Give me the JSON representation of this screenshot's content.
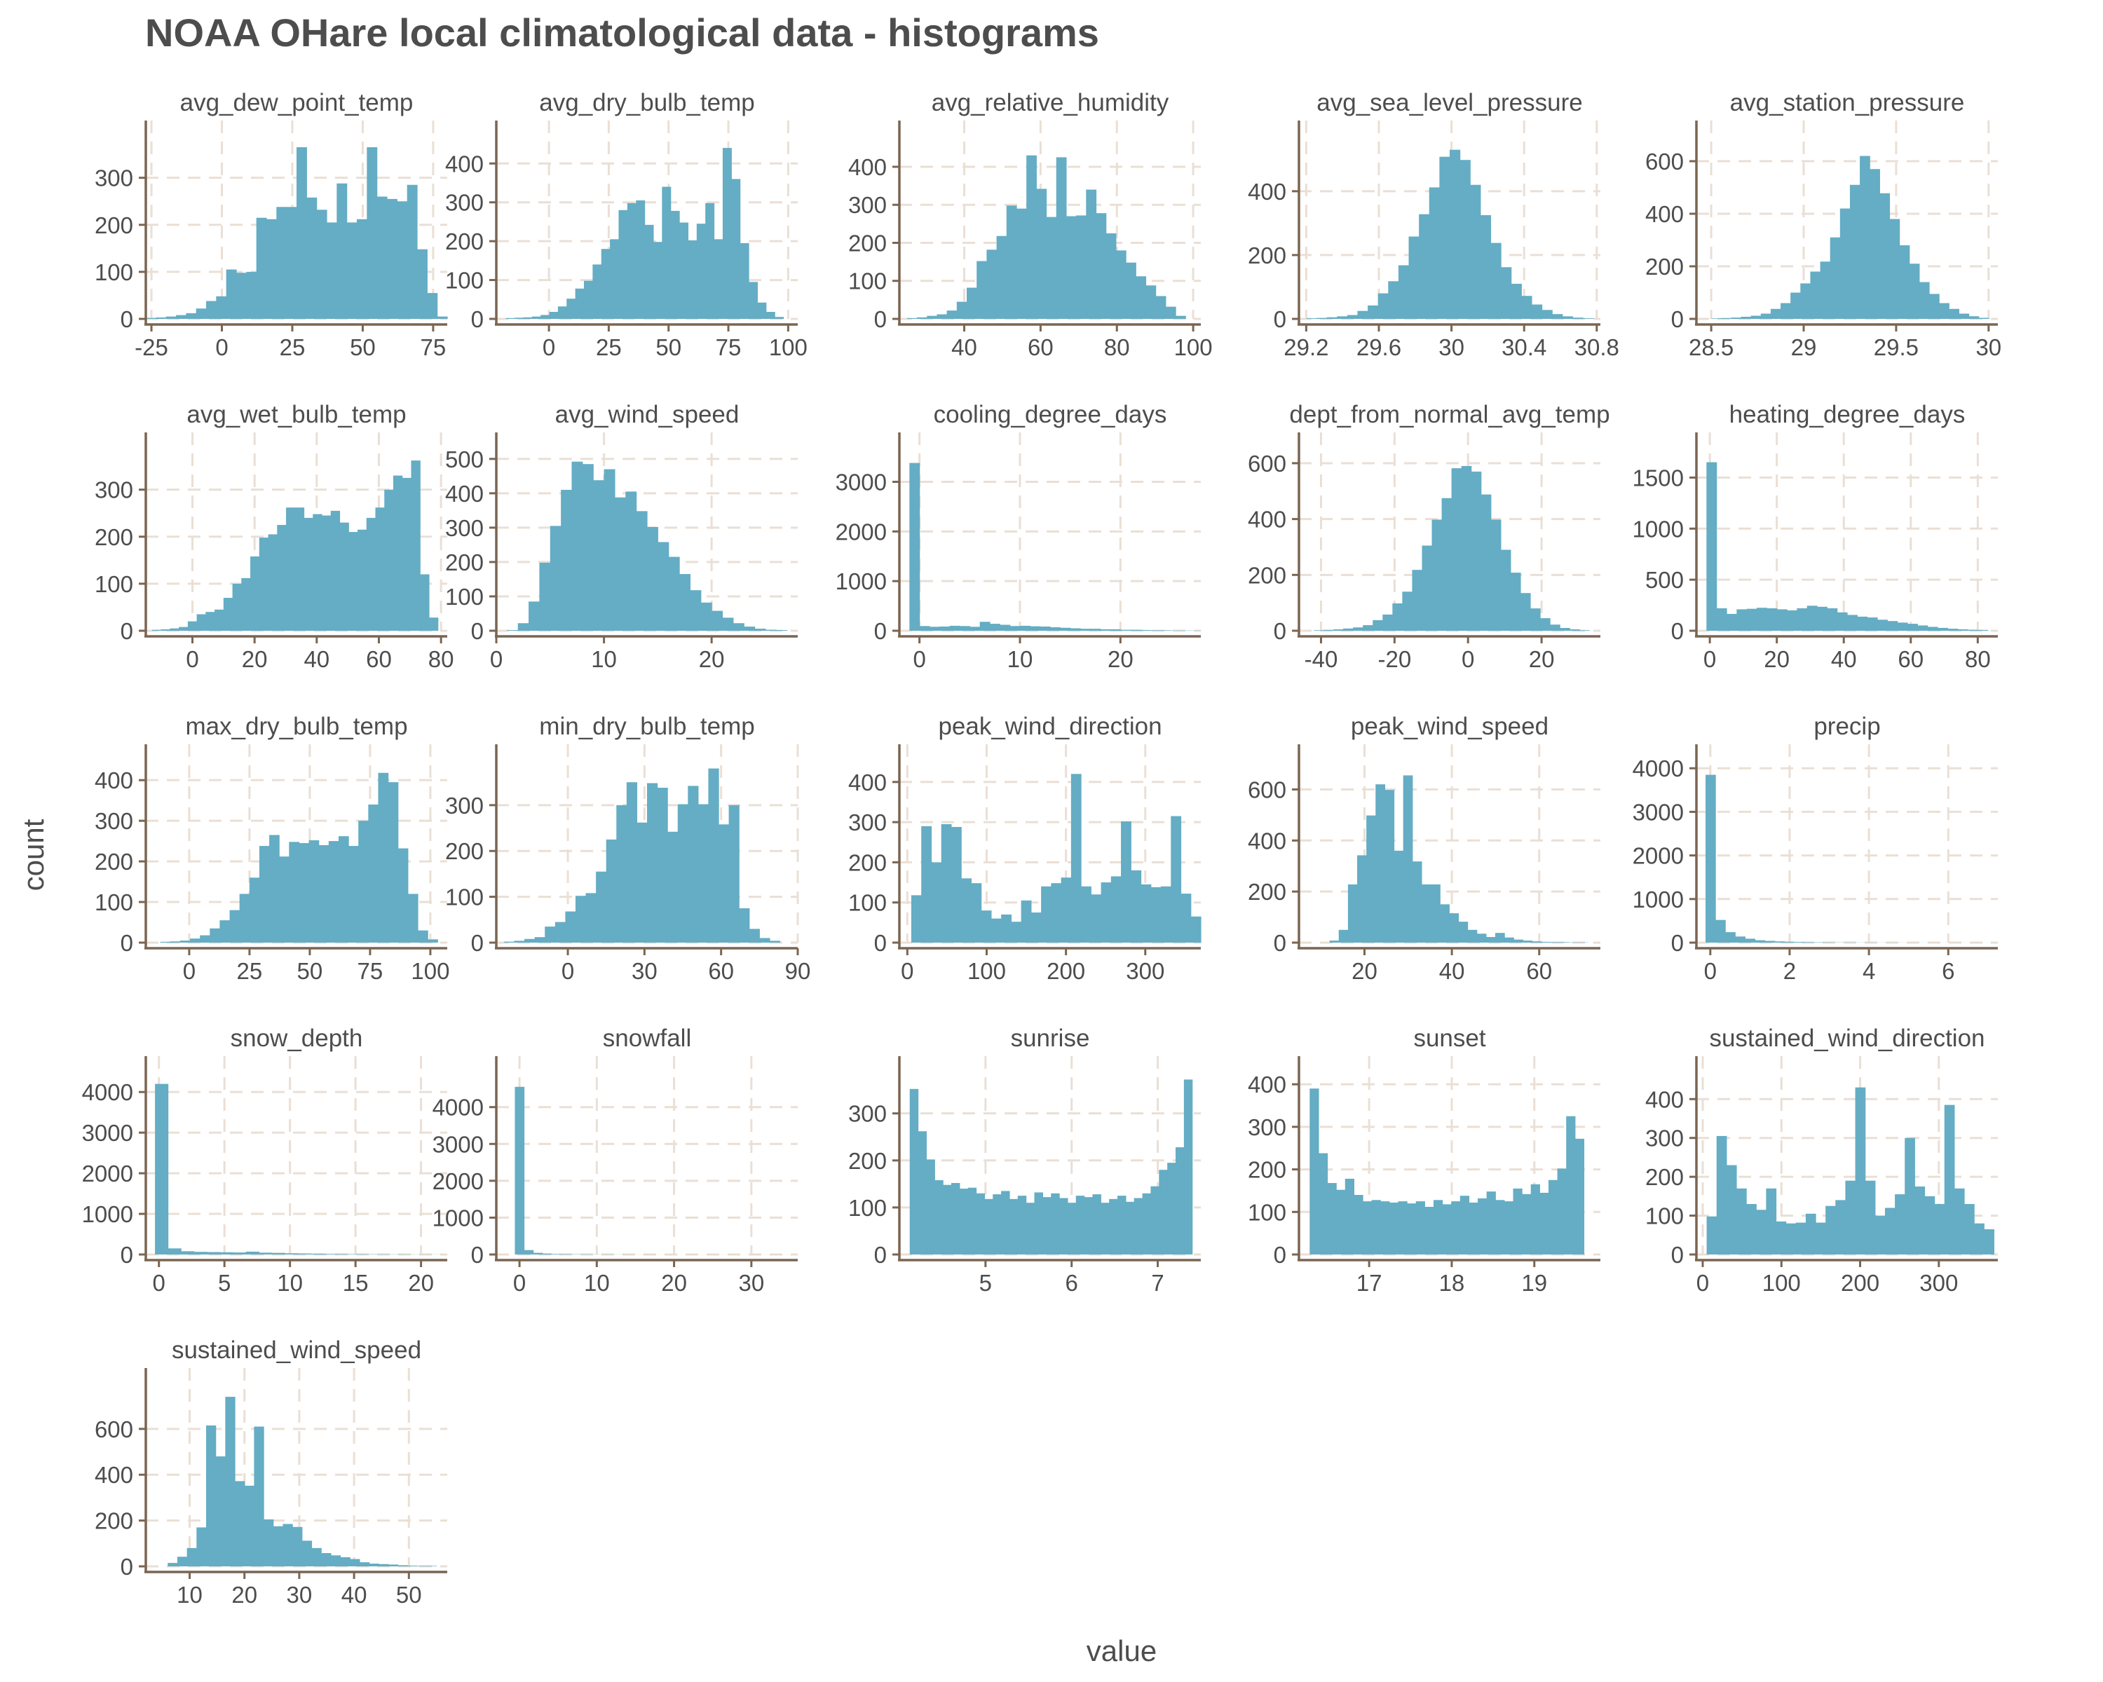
{
  "chart_data": {
    "type": "histogram-facets",
    "title": "NOAA OHare local climatological data - histograms",
    "xlabel": "value",
    "ylabel": "count",
    "colors": {
      "bar": "#64adc4",
      "axis": "#7a6552",
      "grid": "#eadfd5",
      "text": "#4d4d4d"
    },
    "grid": true,
    "facets": [
      {
        "name": "avg_dew_point_temp",
        "xlim": [
          -27,
          80
        ],
        "ylim": [
          0,
          380
        ],
        "xticks": [
          -25,
          0,
          25,
          50,
          75
        ],
        "yticks": [
          0,
          100,
          200,
          300
        ],
        "bins": [
          -27,
          80
        ],
        "counts": [
          2,
          3,
          5,
          8,
          12,
          22,
          38,
          48,
          105,
          98,
          100,
          215,
          212,
          238,
          238,
          365,
          258,
          232,
          205,
          288,
          205,
          212,
          365,
          260,
          255,
          250,
          285,
          148,
          55,
          5
        ]
      },
      {
        "name": "avg_dry_bulb_temp",
        "xlim": [
          -22,
          104
        ],
        "ylim": [
          0,
          460
        ],
        "xticks": [
          0,
          25,
          50,
          75,
          100
        ],
        "yticks": [
          0,
          100,
          200,
          300,
          400
        ],
        "bins": [
          -18,
          98
        ],
        "counts": [
          2,
          3,
          4,
          6,
          10,
          18,
          32,
          52,
          78,
          98,
          140,
          180,
          205,
          280,
          298,
          305,
          242,
          198,
          340,
          278,
          248,
          202,
          245,
          298,
          205,
          440,
          360,
          195,
          95,
          42,
          18,
          5
        ]
      },
      {
        "name": "avg_relative_humidity",
        "xlim": [
          23,
          102
        ],
        "ylim": [
          0,
          470
        ],
        "xticks": [
          40,
          60,
          80,
          100
        ],
        "yticks": [
          0,
          100,
          200,
          300,
          400
        ],
        "bins": [
          25,
          98
        ],
        "counts": [
          2,
          4,
          8,
          12,
          22,
          45,
          82,
          152,
          182,
          218,
          298,
          290,
          430,
          342,
          268,
          425,
          270,
          272,
          340,
          278,
          225,
          180,
          148,
          112,
          88,
          60,
          32,
          8
        ]
      },
      {
        "name": "avg_sea_level_pressure",
        "xlim": [
          29.16,
          30.82
        ],
        "ylim": [
          0,
          560
        ],
        "xticks": [
          29.2,
          29.6,
          30.0,
          30.4,
          30.8
        ],
        "yticks": [
          0,
          200,
          400
        ],
        "bins": [
          29.2,
          30.78
        ],
        "counts": [
          2,
          3,
          5,
          8,
          12,
          25,
          42,
          80,
          118,
          168,
          258,
          328,
          412,
          508,
          530,
          498,
          420,
          325,
          238,
          162,
          110,
          72,
          45,
          28,
          15,
          8,
          4,
          2
        ]
      },
      {
        "name": "avg_station_pressure",
        "xlim": [
          28.42,
          30.05
        ],
        "ylim": [
          0,
          680
        ],
        "xticks": [
          28.5,
          29.0,
          29.5,
          30.0
        ],
        "yticks": [
          0,
          200,
          400,
          600
        ],
        "bins": [
          28.5,
          30.0
        ],
        "counts": [
          2,
          3,
          5,
          8,
          12,
          20,
          38,
          60,
          100,
          135,
          180,
          218,
          310,
          420,
          510,
          620,
          570,
          478,
          380,
          280,
          210,
          140,
          95,
          60,
          38,
          20,
          10,
          4
        ]
      },
      {
        "name": "avg_wet_bulb_temp",
        "xlim": [
          -15,
          82
        ],
        "ylim": [
          0,
          380
        ],
        "xticks": [
          0,
          20,
          40,
          60,
          80
        ],
        "yticks": [
          0,
          100,
          200,
          300
        ],
        "bins": [
          -13,
          79
        ],
        "counts": [
          2,
          3,
          5,
          8,
          20,
          35,
          40,
          45,
          70,
          100,
          112,
          158,
          198,
          205,
          225,
          262,
          262,
          240,
          248,
          245,
          255,
          230,
          210,
          215,
          240,
          262,
          300,
          330,
          325,
          362,
          120,
          28
        ]
      },
      {
        "name": "avg_wind_speed",
        "xlim": [
          0,
          28
        ],
        "ylim": [
          0,
          520
        ],
        "xticks": [
          0,
          10,
          20
        ],
        "yticks": [
          0,
          100,
          200,
          300,
          400,
          500
        ],
        "bins": [
          1,
          27
        ],
        "counts": [
          2,
          22,
          85,
          198,
          305,
          410,
          492,
          485,
          438,
          470,
          388,
          405,
          348,
          302,
          258,
          215,
          165,
          118,
          82,
          58,
          38,
          22,
          12,
          6,
          3,
          2
        ]
      },
      {
        "name": "cooling_degree_days",
        "xlim": [
          -2,
          28
        ],
        "ylim": [
          0,
          3600
        ],
        "xticks": [
          0,
          10,
          20
        ],
        "yticks": [
          0,
          1000,
          2000,
          3000
        ],
        "bins": [
          -1,
          28
        ],
        "counts": [
          3380,
          95,
          80,
          85,
          100,
          95,
          80,
          180,
          140,
          120,
          95,
          100,
          90,
          85,
          70,
          60,
          50,
          40,
          40,
          30,
          30,
          20,
          20,
          15,
          10,
          10,
          5,
          5,
          3
        ]
      },
      {
        "name": "dept_from_normal_avg_temp",
        "xlim": [
          -46,
          36
        ],
        "ylim": [
          0,
          640
        ],
        "xticks": [
          -40,
          -20,
          0,
          20
        ],
        "yticks": [
          0,
          200,
          400,
          600
        ],
        "bins": [
          -42,
          33
        ],
        "counts": [
          2,
          3,
          5,
          8,
          12,
          20,
          38,
          58,
          98,
          140,
          218,
          305,
          398,
          475,
          582,
          590,
          570,
          488,
          398,
          290,
          208,
          135,
          80,
          45,
          22,
          10,
          5,
          2
        ]
      },
      {
        "name": "heating_degree_days",
        "xlim": [
          -4,
          86
        ],
        "ylim": [
          0,
          1750
        ],
        "xticks": [
          0,
          20,
          40,
          60,
          80
        ],
        "yticks": [
          0,
          500,
          1000,
          1500
        ],
        "bins": [
          -1,
          83
        ],
        "counts": [
          1650,
          220,
          165,
          210,
          215,
          225,
          220,
          210,
          200,
          220,
          245,
          235,
          220,
          180,
          155,
          138,
          130,
          108,
          95,
          80,
          68,
          52,
          38,
          28,
          20,
          14,
          10,
          8
        ]
      },
      {
        "name": "max_dry_bulb_temp",
        "xlim": [
          -18,
          107
        ],
        "ylim": [
          0,
          440
        ],
        "xticks": [
          0,
          25,
          50,
          75,
          100
        ],
        "yticks": [
          0,
          100,
          200,
          300,
          400
        ],
        "bins": [
          -12,
          103
        ],
        "counts": [
          2,
          3,
          5,
          10,
          18,
          35,
          55,
          80,
          120,
          160,
          238,
          265,
          212,
          248,
          245,
          252,
          240,
          250,
          262,
          238,
          300,
          340,
          418,
          395,
          232,
          120,
          30,
          8
        ]
      },
      {
        "name": "min_dry_bulb_temp",
        "xlim": [
          -28,
          90
        ],
        "ylim": [
          0,
          390
        ],
        "xticks": [
          0,
          30,
          60,
          90
        ],
        "yticks": [
          0,
          100,
          200,
          300
        ],
        "bins": [
          -25,
          83
        ],
        "counts": [
          2,
          4,
          8,
          12,
          35,
          45,
          68,
          102,
          108,
          155,
          225,
          300,
          350,
          262,
          348,
          338,
          242,
          302,
          342,
          302,
          380,
          258,
          300,
          75,
          30,
          10,
          4
        ]
      },
      {
        "name": "peak_wind_direction",
        "xlim": [
          -10,
          370
        ],
        "ylim": [
          0,
          445
        ],
        "xticks": [
          0,
          100,
          200,
          300
        ],
        "yticks": [
          0,
          100,
          200,
          300,
          400
        ],
        "bins": [
          5,
          370
        ],
        "counts": [
          118,
          290,
          200,
          295,
          288,
          160,
          148,
          80,
          60,
          70,
          52,
          105,
          75,
          140,
          148,
          162,
          420,
          140,
          120,
          150,
          165,
          302,
          180,
          145,
          138,
          140,
          315,
          122,
          65
        ]
      },
      {
        "name": "peak_wind_speed",
        "xlim": [
          5,
          74
        ],
        "ylim": [
          0,
          700
        ],
        "xticks": [
          20,
          40,
          60
        ],
        "yticks": [
          0,
          200,
          400,
          600
        ],
        "bins": [
          12,
          71
        ],
        "counts": [
          8,
          50,
          228,
          342,
          498,
          620,
          598,
          360,
          655,
          318,
          228,
          228,
          150,
          115,
          82,
          50,
          35,
          22,
          38,
          20,
          12,
          8,
          5,
          3,
          2,
          2,
          1,
          1
        ]
      },
      {
        "name": "precip",
        "xlim": [
          -0.35,
          7.25
        ],
        "ylim": [
          0,
          4100
        ],
        "xticks": [
          0,
          2,
          4,
          6
        ],
        "yticks": [
          0,
          1000,
          2000,
          3000,
          4000
        ],
        "bins": [
          -0.12,
          7.1
        ],
        "counts": [
          3850,
          520,
          240,
          140,
          90,
          55,
          40,
          28,
          20,
          15,
          10,
          8,
          6,
          5,
          4,
          3,
          3,
          2,
          2,
          2,
          1,
          1,
          1,
          1,
          1,
          1,
          1,
          1,
          1
        ]
      },
      {
        "name": "snow_depth",
        "xlim": [
          -1,
          22
        ],
        "ylim": [
          0,
          4400
        ],
        "xticks": [
          0,
          5,
          10,
          15,
          20
        ],
        "yticks": [
          0,
          1000,
          2000,
          3000,
          4000
        ],
        "bins": [
          -0.3,
          21.5
        ],
        "counts": [
          4200,
          150,
          80,
          65,
          60,
          55,
          50,
          70,
          45,
          40,
          30,
          25,
          20,
          15,
          12,
          10,
          8,
          6,
          5,
          4,
          3,
          3
        ]
      },
      {
        "name": "snowfall",
        "xlim": [
          -3,
          36
        ],
        "ylim": [
          0,
          4850
        ],
        "xticks": [
          0,
          10,
          20,
          30
        ],
        "yticks": [
          0,
          1000,
          2000,
          3000,
          4000
        ],
        "bins": [
          -0.6,
          35
        ],
        "counts": [
          4550,
          120,
          45,
          25,
          15,
          10,
          8,
          6,
          5,
          4,
          3,
          3,
          2,
          2,
          2,
          1,
          1,
          1,
          1,
          1,
          1,
          1,
          1,
          1,
          1,
          1,
          1,
          1,
          1,
          1
        ]
      },
      {
        "name": "sunrise",
        "xlim": [
          4.0,
          7.5
        ],
        "ylim": [
          0,
          380
        ],
        "xticks": [
          5,
          6,
          7
        ],
        "yticks": [
          0,
          100,
          200,
          300
        ],
        "bins": [
          4.12,
          7.4
        ],
        "counts": [
          352,
          262,
          202,
          158,
          148,
          152,
          140,
          142,
          130,
          118,
          128,
          135,
          118,
          125,
          110,
          132,
          122,
          130,
          120,
          110,
          125,
          122,
          128,
          110,
          118,
          125,
          112,
          120,
          130,
          145,
          180,
          195,
          228,
          372
        ]
      },
      {
        "name": "sunset",
        "xlim": [
          16.15,
          19.8
        ],
        "ylim": [
          0,
          420
        ],
        "xticks": [
          17,
          18,
          19
        ],
        "yticks": [
          0,
          100,
          200,
          300,
          400
        ],
        "bins": [
          16.28,
          19.6
        ],
        "counts": [
          390,
          238,
          168,
          152,
          178,
          140,
          125,
          128,
          125,
          122,
          125,
          120,
          125,
          112,
          128,
          118,
          125,
          138,
          122,
          132,
          148,
          128,
          125,
          155,
          142,
          165,
          145,
          175,
          202,
          325,
          272
        ]
      },
      {
        "name": "sustained_wind_direction",
        "xlim": [
          -8,
          375
        ],
        "ylim": [
          0,
          460
        ],
        "xticks": [
          0,
          100,
          200,
          300
        ],
        "yticks": [
          0,
          100,
          200,
          300,
          400
        ],
        "bins": [
          5,
          370
        ],
        "counts": [
          98,
          305,
          230,
          170,
          130,
          115,
          170,
          85,
          80,
          82,
          105,
          82,
          125,
          140,
          190,
          430,
          190,
          100,
          120,
          155,
          300,
          175,
          150,
          130,
          385,
          170,
          130,
          80,
          65
        ]
      },
      {
        "name": "sustained_wind_speed",
        "xlim": [
          2,
          57
        ],
        "ylim": [
          0,
          780
        ],
        "xticks": [
          10,
          20,
          30,
          40,
          50
        ],
        "yticks": [
          0,
          200,
          400,
          600
        ],
        "bins": [
          6,
          55
        ],
        "counts": [
          15,
          42,
          80,
          170,
          615,
          480,
          740,
          372,
          352,
          610,
          205,
          175,
          185,
          172,
          112,
          80,
          58,
          48,
          40,
          32,
          18,
          12,
          10,
          8,
          5,
          3,
          2,
          2
        ]
      }
    ]
  }
}
